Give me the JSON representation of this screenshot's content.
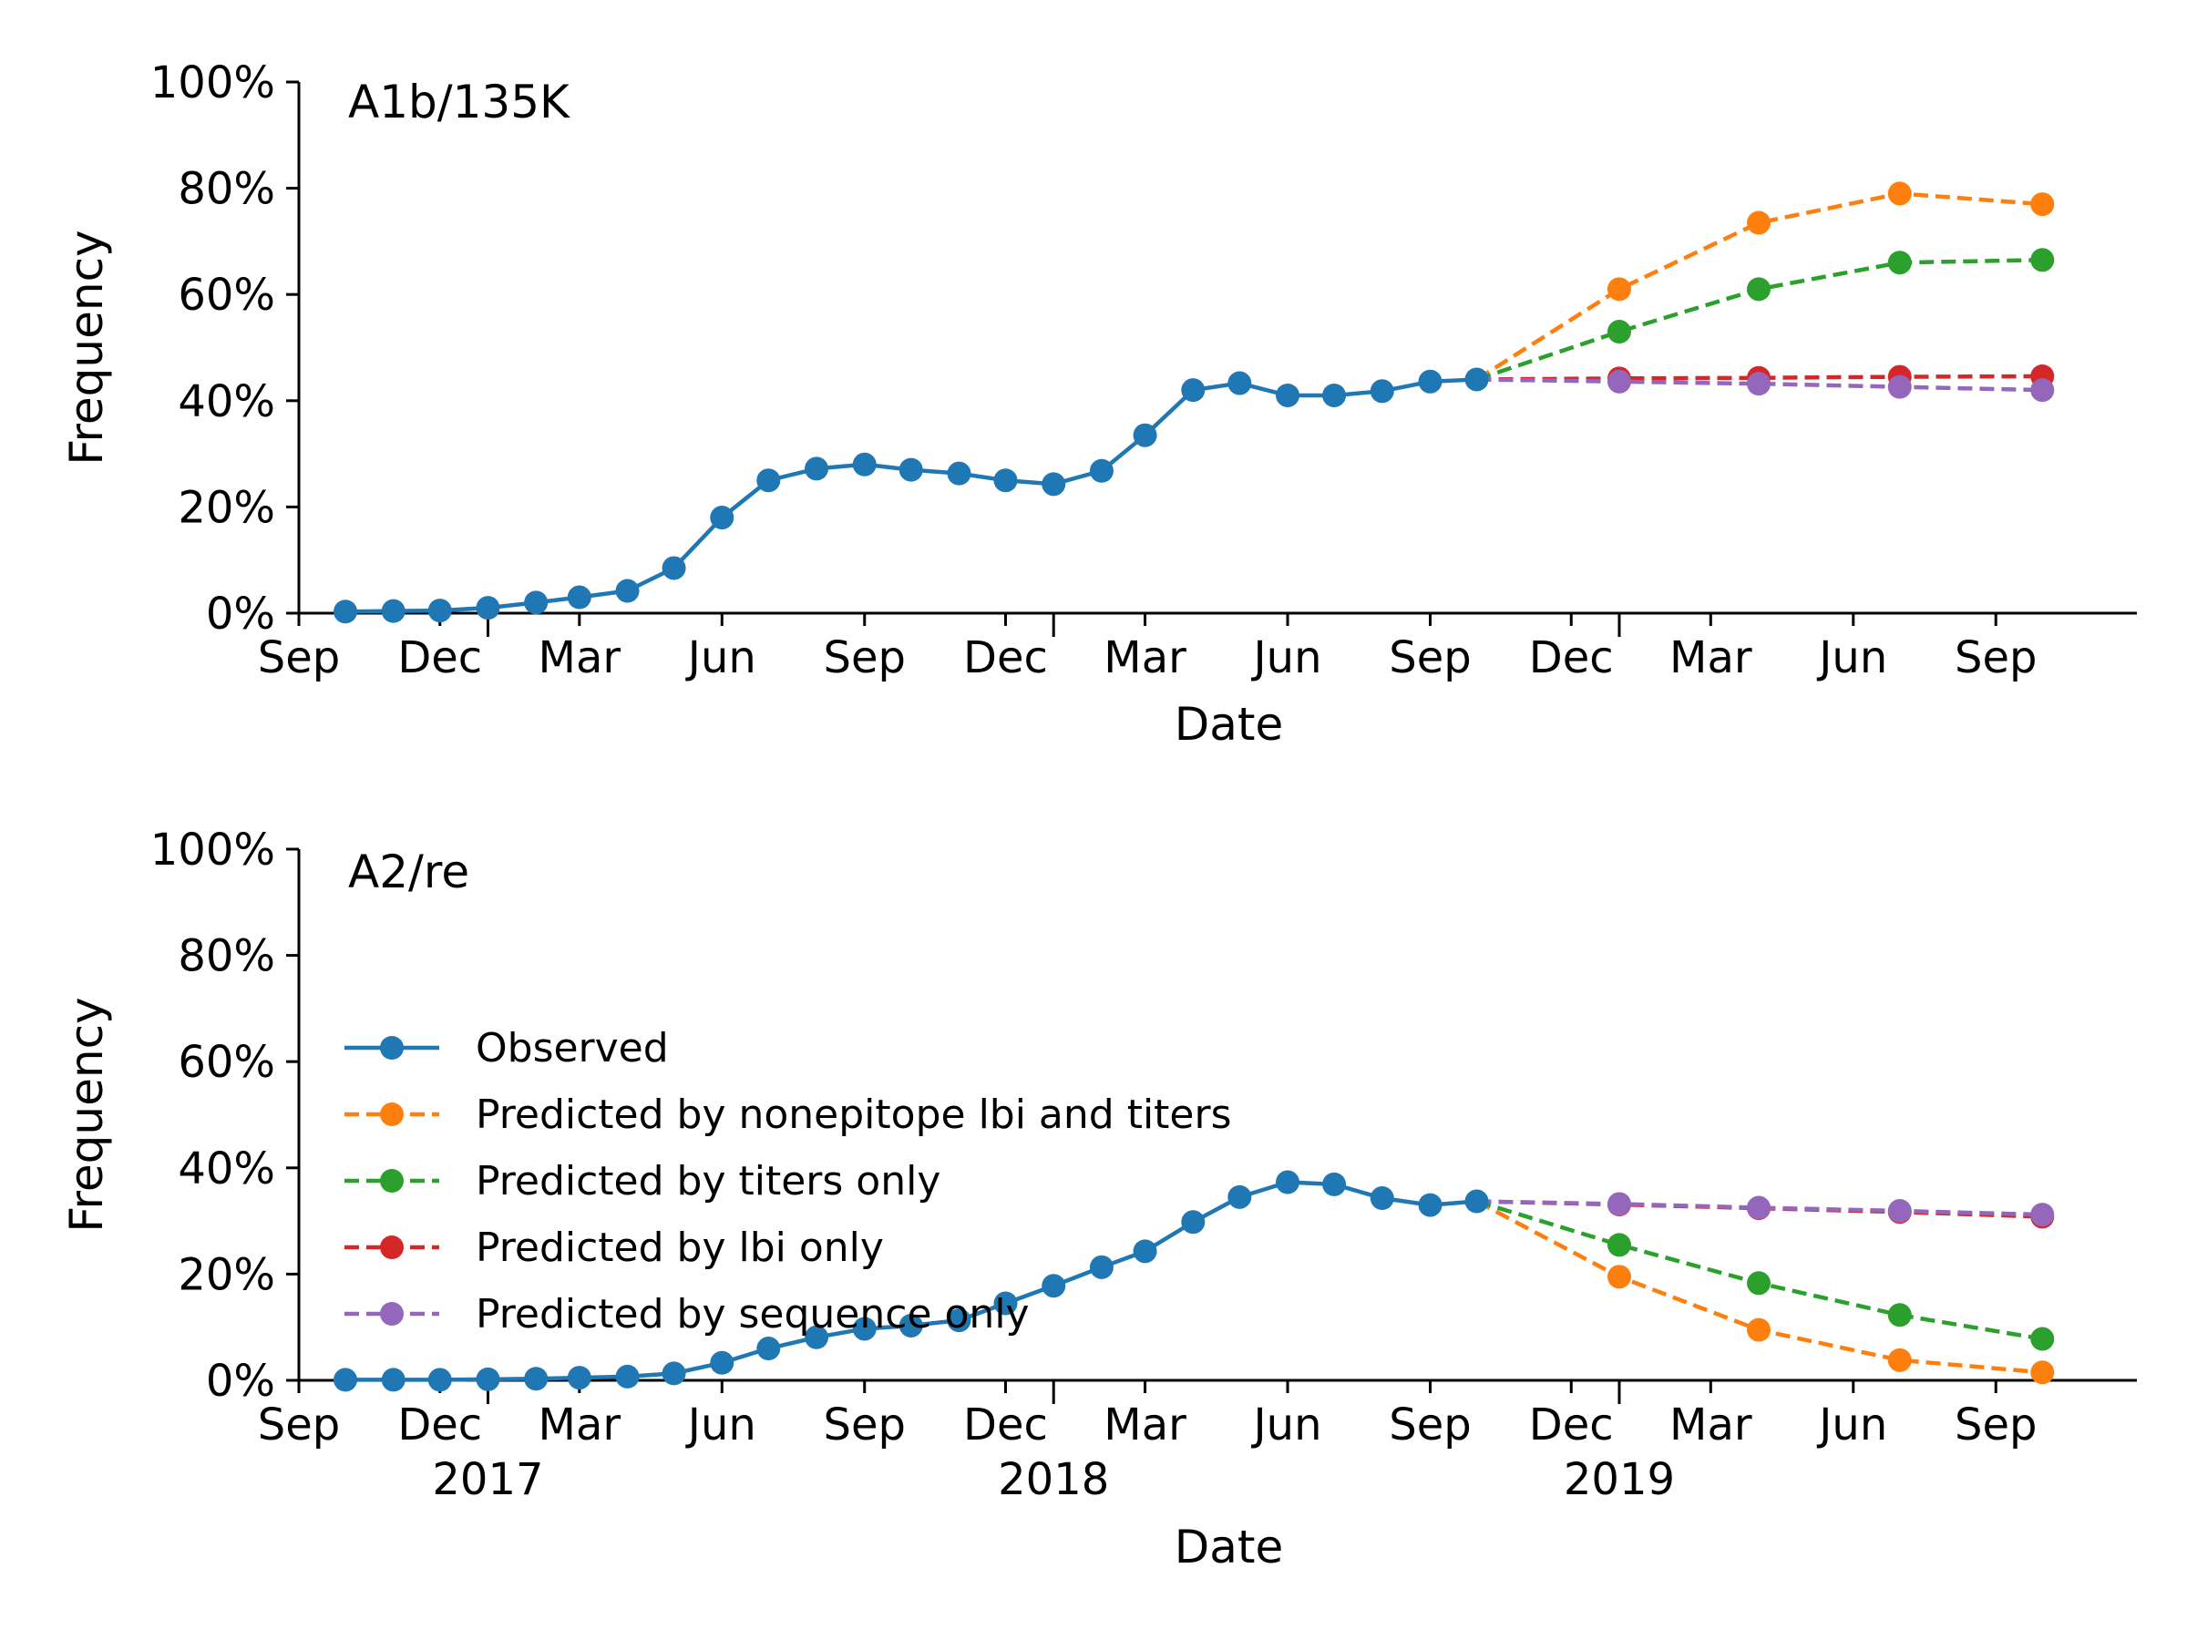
{
  "chart_data": [
    {
      "type": "line",
      "title": "A1b/135K",
      "xlabel": "Date",
      "ylabel": "Frequency",
      "ylim": [
        0,
        100
      ],
      "yticks": [
        "0%",
        "20%",
        "40%",
        "60%",
        "80%",
        "100%"
      ],
      "xticks": [
        "Sep",
        "Dec",
        "Mar",
        "Jun",
        "Sep",
        "Dec",
        "Mar",
        "Jun",
        "Sep",
        "Dec",
        "Mar",
        "Jun",
        "Sep"
      ],
      "year_labels": [],
      "grid": false,
      "series": [
        {
          "name": "Observed",
          "color": "#1f77b4",
          "dash": false,
          "x": [
            "2016-10-01",
            "2016-11-01",
            "2016-12-01",
            "2017-01-01",
            "2017-02-01",
            "2017-03-01",
            "2017-04-01",
            "2017-05-01",
            "2017-06-01",
            "2017-07-01",
            "2017-08-01",
            "2017-09-01",
            "2017-10-01",
            "2017-11-01",
            "2017-12-01",
            "2018-01-01",
            "2018-02-01",
            "2018-03-01",
            "2018-04-01",
            "2018-05-01",
            "2018-06-01",
            "2018-07-01",
            "2018-08-01",
            "2018-09-01",
            "2018-10-01"
          ],
          "y": [
            0.3,
            0.4,
            0.5,
            1.0,
            2.0,
            3.0,
            4.2,
            8.5,
            18.0,
            25.0,
            27.2,
            28.0,
            27.0,
            26.3,
            25.0,
            24.3,
            26.8,
            33.5,
            42.0,
            43.3,
            41.0,
            41.0,
            41.8,
            43.6,
            44.0
          ]
        },
        {
          "name": "Predicted by nonepitope lbi and titers",
          "color": "#ff7f0e",
          "dash": true,
          "x": [
            "2018-10-01",
            "2019-01-01",
            "2019-04-01",
            "2019-07-01",
            "2019-10-01"
          ],
          "y": [
            44.0,
            61.0,
            73.5,
            79.0,
            77.0
          ]
        },
        {
          "name": "Predicted by titers only",
          "color": "#2ca02c",
          "dash": true,
          "x": [
            "2018-10-01",
            "2019-01-01",
            "2019-04-01",
            "2019-07-01",
            "2019-10-01"
          ],
          "y": [
            44.0,
            53.0,
            61.0,
            66.0,
            66.5
          ]
        },
        {
          "name": "Predicted by lbi only",
          "color": "#d62728",
          "dash": true,
          "x": [
            "2018-10-01",
            "2019-01-01",
            "2019-04-01",
            "2019-07-01",
            "2019-10-01"
          ],
          "y": [
            44.0,
            44.2,
            44.3,
            44.5,
            44.6
          ]
        },
        {
          "name": "Predicted by sequence only",
          "color": "#9467bd",
          "dash": true,
          "x": [
            "2018-10-01",
            "2019-01-01",
            "2019-04-01",
            "2019-07-01",
            "2019-10-01"
          ],
          "y": [
            44.0,
            43.6,
            43.2,
            42.6,
            42.0
          ]
        }
      ]
    },
    {
      "type": "line",
      "title": "A2/re",
      "xlabel": "Date",
      "ylabel": "Frequency",
      "ylim": [
        0,
        100
      ],
      "yticks": [
        "0%",
        "20%",
        "40%",
        "60%",
        "80%",
        "100%"
      ],
      "xticks": [
        "Sep",
        "Dec",
        "Mar",
        "Jun",
        "Sep",
        "Dec",
        "Mar",
        "Jun",
        "Sep",
        "Dec",
        "Mar",
        "Jun",
        "Sep"
      ],
      "year_labels": [
        "2017",
        "2018",
        "2019"
      ],
      "grid": false,
      "legend": "center-left",
      "series": [
        {
          "name": "Observed",
          "color": "#1f77b4",
          "dash": false,
          "x": [
            "2016-10-01",
            "2016-11-01",
            "2016-12-01",
            "2017-01-01",
            "2017-02-01",
            "2017-03-01",
            "2017-04-01",
            "2017-05-01",
            "2017-06-01",
            "2017-07-01",
            "2017-08-01",
            "2017-09-01",
            "2017-10-01",
            "2017-11-01",
            "2017-12-01",
            "2018-01-01",
            "2018-02-01",
            "2018-03-01",
            "2018-04-01",
            "2018-05-01",
            "2018-06-01",
            "2018-07-01",
            "2018-08-01",
            "2018-09-01",
            "2018-10-01"
          ],
          "y": [
            0.1,
            0.1,
            0.1,
            0.2,
            0.3,
            0.5,
            0.7,
            1.3,
            3.3,
            6.0,
            8.1,
            9.7,
            10.3,
            11.3,
            14.5,
            17.8,
            21.3,
            24.3,
            29.8,
            34.5,
            37.3,
            36.9,
            34.3,
            33.0,
            33.7
          ]
        },
        {
          "name": "Predicted by nonepitope lbi and titers",
          "color": "#ff7f0e",
          "dash": true,
          "x": [
            "2018-10-01",
            "2019-01-01",
            "2019-04-01",
            "2019-07-01",
            "2019-10-01"
          ],
          "y": [
            33.7,
            19.5,
            9.5,
            3.8,
            1.5
          ]
        },
        {
          "name": "Predicted by titers only",
          "color": "#2ca02c",
          "dash": true,
          "x": [
            "2018-10-01",
            "2019-01-01",
            "2019-04-01",
            "2019-07-01",
            "2019-10-01"
          ],
          "y": [
            33.7,
            25.5,
            18.3,
            12.3,
            7.8
          ]
        },
        {
          "name": "Predicted by lbi only",
          "color": "#d62728",
          "dash": true,
          "x": [
            "2018-10-01",
            "2019-01-01",
            "2019-04-01",
            "2019-07-01",
            "2019-10-01"
          ],
          "y": [
            33.7,
            33.1,
            32.4,
            31.7,
            30.8
          ]
        },
        {
          "name": "Predicted by sequence only",
          "color": "#9467bd",
          "dash": true,
          "x": [
            "2018-10-01",
            "2019-01-01",
            "2019-04-01",
            "2019-07-01",
            "2019-10-01"
          ],
          "y": [
            33.7,
            33.2,
            32.5,
            31.9,
            31.2
          ]
        }
      ]
    }
  ]
}
